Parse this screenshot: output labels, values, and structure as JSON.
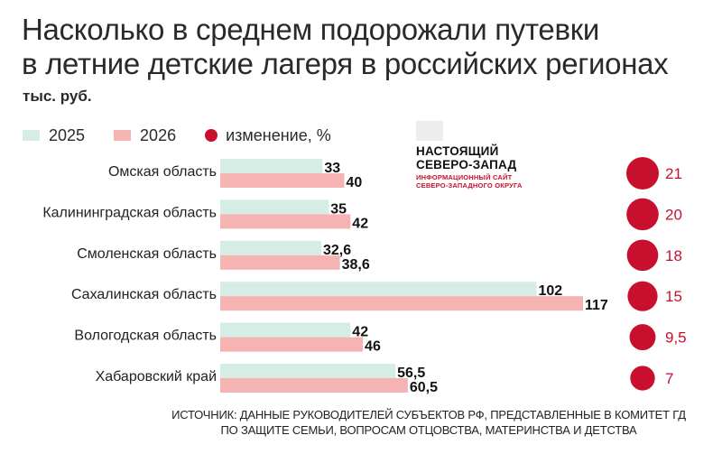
{
  "title_line1": "Насколько в среднем подорожали путевки",
  "title_line2": "в летние детские лагеря в российских регионах",
  "unit": "тыс. руб.",
  "legend": [
    {
      "label": "2025",
      "color": "#d6ede6"
    },
    {
      "label": "2026",
      "color": "#f5b3b1"
    },
    {
      "label": "изменение, %",
      "color": "#c8102e"
    }
  ],
  "logo": {
    "line1": "НАСТОЯЩИЙ",
    "line2": "СЕВЕРО-ЗАПАД",
    "sub1": "ИНФОРМАЦИОННЫЙ САЙТ",
    "sub2": "СЕВЕРО-ЗАПАДНОГО ОКРУГА"
  },
  "source_line1": "ИСТОЧНИК: ДАННЫЕ РУКОВОДИТЕЛЕЙ СУБЪЕКТОВ РФ, ПРЕДСТАВЛЕННЫЕ В КОМИТЕТ ГД",
  "source_line2": "ПО ЗАЩИТЕ СЕМЬИ, ВОПРОСАМ ОТЦОВСТВА, МАТЕРИНСТВА И ДЕТСТВА",
  "chart_data": {
    "type": "bar",
    "orientation": "horizontal",
    "categories": [
      "Омская область",
      "Калининградская область",
      "Смоленская область",
      "Сахалинская область",
      "Вологодская область",
      "Хабаровский край"
    ],
    "series": [
      {
        "name": "2025",
        "values": [
          33,
          35,
          32.6,
          102,
          42,
          56.5
        ],
        "labels": [
          "33",
          "35",
          "32,6",
          "102",
          "42",
          "56,5"
        ],
        "color": "#d6ede6"
      },
      {
        "name": "2026",
        "values": [
          40,
          42,
          38.6,
          117,
          46,
          60.5
        ],
        "labels": [
          "40",
          "42",
          "38,6",
          "117",
          "46",
          "60,5"
        ],
        "color": "#f5b3b1"
      }
    ],
    "change": {
      "name": "изменение, %",
      "values": [
        21,
        20,
        18,
        15,
        9.5,
        7
      ],
      "labels": [
        "21",
        "20",
        "18",
        "15",
        "9,5",
        "7"
      ],
      "color": "#c8102e"
    },
    "xlim": [
      0,
      117
    ],
    "grid": false,
    "legend_position": "top-left"
  }
}
